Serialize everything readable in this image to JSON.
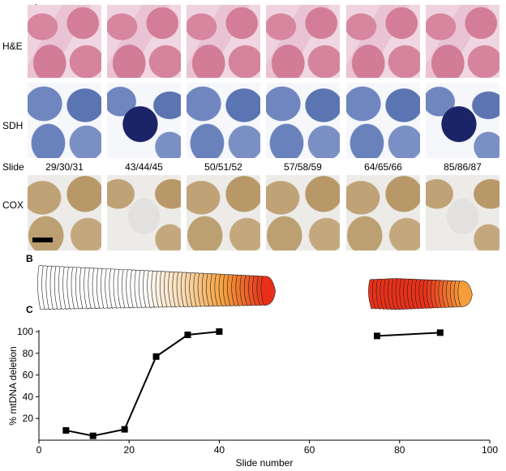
{
  "panels": {
    "a": "A",
    "b": "B",
    "c": "C"
  },
  "row_labels": {
    "he": "H&E",
    "sdh": "SDH",
    "slide": "Slide",
    "cox": "COX"
  },
  "slides": [
    "29/30/31",
    "43/44/45",
    "50/51/52",
    "57/58/59",
    "64/65/66",
    "85/86/87"
  ],
  "colors": {
    "he_stain": "#d47d98",
    "sdh_stain": "#5b74b2",
    "sdh_intense": "#1b2467",
    "cox_stain": "#b89868",
    "fibre_deletion_low": "#ffffff",
    "fibre_deletion_high": "#e8301a"
  },
  "chart_data": {
    "type": "line",
    "xlabel": "Slide number",
    "ylabel": "% mtDNA deletion",
    "xlim": [
      0,
      100
    ],
    "ylim": [
      0,
      100
    ],
    "xticks": [
      0,
      20,
      40,
      60,
      80,
      100
    ],
    "yticks": [
      20,
      40,
      60,
      80,
      100
    ],
    "series": [
      {
        "points": [
          [
            6,
            9
          ],
          [
            12,
            4
          ],
          [
            19,
            10
          ],
          [
            26,
            77
          ],
          [
            33,
            97
          ],
          [
            40,
            100
          ]
        ]
      },
      {
        "points": [
          [
            75,
            96
          ],
          [
            89,
            99
          ]
        ]
      }
    ],
    "marker": "square",
    "grid": false
  }
}
